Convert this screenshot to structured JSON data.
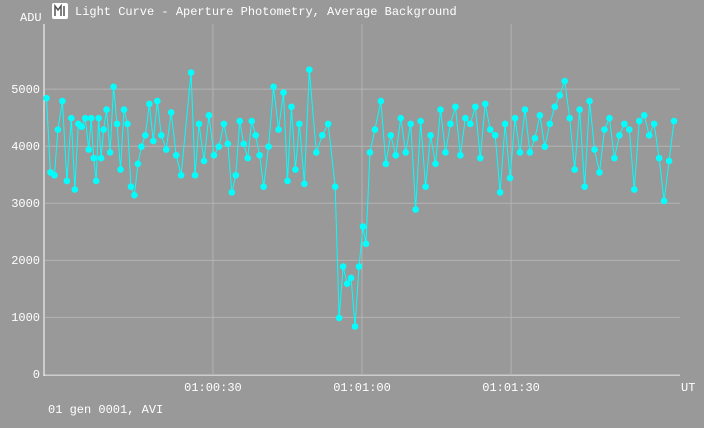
{
  "chart_data": {
    "type": "line",
    "title": "Light Curve - Aperture Photometry, Average Background",
    "y_label": "ADU",
    "x_label": "UT",
    "footer": "01 gen 0001, AVI",
    "color": "#00ffff",
    "grid": true,
    "xlim": [
      3596,
      3724
    ],
    "xticks": [
      {
        "value": 3630,
        "label": "01:00:30"
      },
      {
        "value": 3660,
        "label": "01:01:00"
      },
      {
        "value": 3690,
        "label": "01:01:30"
      }
    ],
    "ylim": [
      0,
      6150
    ],
    "yticks": [
      0,
      1000,
      2000,
      3000,
      4000,
      5000
    ],
    "x": [
      3596.5,
      3597.3,
      3598.1,
      3598.8,
      3599.7,
      3600.6,
      3601.5,
      3602.2,
      3602.9,
      3603.6,
      3604.3,
      3605.0,
      3605.5,
      3606.0,
      3606.5,
      3607.0,
      3607.5,
      3608.0,
      3608.6,
      3609.3,
      3610.0,
      3610.7,
      3611.4,
      3612.1,
      3612.8,
      3613.5,
      3614.2,
      3614.9,
      3615.6,
      3616.4,
      3617.2,
      3618.0,
      3618.8,
      3619.6,
      3620.6,
      3621.6,
      3622.6,
      3623.6,
      3625.6,
      3626.4,
      3627.2,
      3628.2,
      3629.2,
      3630.2,
      3631.2,
      3632.2,
      3633.0,
      3633.8,
      3634.6,
      3635.4,
      3636.2,
      3637.0,
      3637.8,
      3638.6,
      3639.4,
      3640.2,
      3641.2,
      3642.2,
      3643.2,
      3644.2,
      3645.0,
      3645.8,
      3646.6,
      3647.4,
      3648.4,
      3649.4,
      3650.8,
      3652.0,
      3653.2,
      3654.6,
      3655.4,
      3656.2,
      3657.0,
      3657.8,
      3658.6,
      3659.4,
      3660.2,
      3660.8,
      3661.6,
      3662.6,
      3663.8,
      3664.8,
      3665.8,
      3666.8,
      3667.8,
      3668.8,
      3669.8,
      3670.8,
      3671.8,
      3672.8,
      3673.8,
      3674.8,
      3675.8,
      3676.8,
      3677.8,
      3678.8,
      3679.8,
      3680.8,
      3681.8,
      3682.8,
      3683.8,
      3684.8,
      3685.8,
      3686.8,
      3687.8,
      3688.8,
      3689.8,
      3690.8,
      3691.8,
      3692.8,
      3693.8,
      3694.8,
      3695.8,
      3696.8,
      3697.8,
      3698.8,
      3699.8,
      3700.8,
      3701.8,
      3702.8,
      3703.8,
      3704.8,
      3705.8,
      3706.8,
      3707.8,
      3708.8,
      3709.8,
      3710.8,
      3711.8,
      3712.8,
      3713.8,
      3714.8,
      3715.8,
      3716.8,
      3717.8,
      3718.8,
      3719.8,
      3720.8,
      3721.8,
      3722.8
    ],
    "values": [
      4850,
      3550,
      3500,
      4300,
      4800,
      3400,
      4500,
      3250,
      4400,
      4350,
      4500,
      3950,
      4500,
      3800,
      3400,
      4500,
      3800,
      4300,
      4650,
      3900,
      5050,
      4400,
      3600,
      4650,
      4400,
      3300,
      3150,
      3700,
      4000,
      4200,
      4750,
      4100,
      4800,
      4200,
      3950,
      4600,
      3850,
      3500,
      5300,
      3500,
      4400,
      3750,
      4550,
      3850,
      4000,
      4400,
      4050,
      3200,
      3500,
      4450,
      4050,
      3800,
      4450,
      4200,
      3850,
      3300,
      4000,
      5050,
      4300,
      4950,
      3400,
      4700,
      3600,
      4400,
      3350,
      5350,
      3900,
      4200,
      4400,
      3300,
      1000,
      1900,
      1600,
      1700,
      850,
      1900,
      2600,
      2300,
      3900,
      4300,
      4800,
      3700,
      4200,
      3850,
      4500,
      3900,
      4400,
      2900,
      4450,
      3300,
      4200,
      3700,
      4650,
      3900,
      4400,
      4700,
      3850,
      4500,
      4400,
      4700,
      3800,
      4750,
      4300,
      4200,
      3200,
      4400,
      3450,
      4500,
      3900,
      4650,
      3900,
      4150,
      4550,
      4000,
      4400,
      4700,
      4900,
      5150,
      4500,
      3600,
      4650,
      3300,
      4800,
      3950,
      3550,
      4300,
      4500,
      3800,
      4200,
      4400,
      4300,
      3250,
      4450,
      4550,
      4200,
      4400,
      3800,
      3050,
      3750,
      4450
    ]
  }
}
